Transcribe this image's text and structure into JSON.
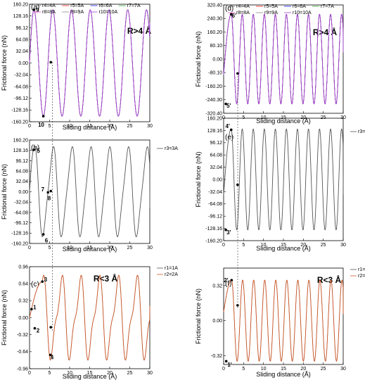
{
  "chart_data": [
    {
      "id": "a",
      "type": "line",
      "panel_label": "(a)",
      "xlabel": "Sliding distance (Å)",
      "ylabel": "Frictional force (nN)",
      "xlim": [
        0,
        30
      ],
      "xticks": [
        "0",
        "5",
        "10",
        "15",
        "20",
        "25",
        "30"
      ],
      "ylim": [
        -160.2,
        160.2
      ],
      "yticks": [
        "160.20",
        "128.16",
        "96.12",
        "64.08",
        "32.04",
        "0.00",
        "-32.04",
        "-64.08",
        "-96.12",
        "-128.16",
        "-160.20"
      ],
      "region_label": "R>4 Å",
      "legend": {
        "ncol": 4,
        "entries": [
          "r4=4A",
          "r5=5A",
          "r6=6A",
          "r7=7A",
          "r8=8A",
          "r9=9A",
          "r10=10A"
        ]
      },
      "colors": [
        "#555555",
        "#ff2020",
        "#2020ff",
        "#3aa53a",
        "#e83cc8",
        "#8a8a8a",
        "#a040d0"
      ],
      "curve": {
        "amplitude": 145,
        "period": 4.68,
        "phase_x": 1.1,
        "start_x": 0.0,
        "end_x": 30.0,
        "start_y": 0.0,
        "end_y": 110.0
      },
      "points": [
        {
          "label": "9",
          "x": 1.1,
          "y": 145
        },
        {
          "label": "10",
          "x": 3.45,
          "y": -145
        },
        {
          "label": "",
          "x": 5.3,
          "y": 2
        }
      ],
      "annotations": [
        {
          "text": "9",
          "x": 2.0,
          "y": 145
        },
        {
          "text": "10",
          "x": 2.9,
          "y": -168
        }
      ]
    },
    {
      "id": "b",
      "type": "line",
      "panel_label": "(b)",
      "xlabel": "Sliding distance (Å)",
      "ylabel": "Frictional force (nN)",
      "xlim": [
        0,
        30
      ],
      "xticks": [
        "0",
        "5",
        "10",
        "15",
        "20",
        "25",
        "30"
      ],
      "ylim": [
        -160.2,
        160.2
      ],
      "yticks": [
        "160.20",
        "128.16",
        "96.12",
        "64.08",
        "32.04",
        "0.00",
        "-32.04",
        "-64.08",
        "-96.12",
        "-128.16",
        "-160.20"
      ],
      "region_label": "",
      "legend": {
        "ncol": 1,
        "entries": [
          "r3=3A"
        ]
      },
      "colors": [
        "#555555"
      ],
      "curve": {
        "amplitude": 132,
        "period": 4.68,
        "phase_x": 1.1,
        "start_x": 0.0,
        "end_x": 30.0,
        "start_y": 0.0,
        "end_y": -50.0,
        "sub_wiggle": 0.18
      },
      "points": [
        {
          "label": "5",
          "x": 1.1,
          "y": 130
        },
        {
          "label": "6",
          "x": 3.45,
          "y": -132
        },
        {
          "label": "7",
          "x": 4.6,
          "y": -2
        },
        {
          "label": "8",
          "x": 5.3,
          "y": 2
        }
      ],
      "annotations": [
        {
          "text": "5",
          "x": 2.2,
          "y": 128
        },
        {
          "text": "6",
          "x": 4.2,
          "y": -150
        },
        {
          "text": "7",
          "x": 3.3,
          "y": 8
        },
        {
          "text": "8",
          "x": 4.9,
          "y": -20
        }
      ]
    },
    {
      "id": "c",
      "type": "line",
      "panel_label": "(c)",
      "xlabel": "Sliding distance (Å)",
      "ylabel": "Frictional force (nN)",
      "xlim": [
        0,
        30
      ],
      "xticks": [
        "0",
        "5",
        "10",
        "15",
        "20",
        "25",
        "30"
      ],
      "ylim": [
        -0.96,
        0.96
      ],
      "yticks": [
        "0.96",
        "0.64",
        "0.32",
        "0.00",
        "-0.32",
        "-0.64",
        "-0.96"
      ],
      "region_label": "R<3 Å",
      "legend": {
        "ncol": 1,
        "entries": [
          "r1=1A",
          "r2=2A"
        ]
      },
      "colors": [
        "#555555",
        "#d05a2a"
      ],
      "curve": {
        "amplitude": 0.68,
        "period": 4.68,
        "phase_x": 3.2,
        "start_x": 0.0,
        "end_x": 30.0,
        "start_y": 0.0,
        "end_y": 0.22,
        "sub_wiggle": 0.35
      },
      "points": [
        {
          "label": "1",
          "x": 0.5,
          "y": 0.16
        },
        {
          "label": "2",
          "x": 1.3,
          "y": -0.2
        },
        {
          "label": "3",
          "x": 3.2,
          "y": 0.68
        },
        {
          "label": "4",
          "x": 5.2,
          "y": -0.7
        },
        {
          "label": "",
          "x": 5.3,
          "y": -0.18
        }
      ],
      "annotations": [
        {
          "text": "1",
          "x": 1.3,
          "y": 0.2
        },
        {
          "text": "2",
          "x": 2.1,
          "y": -0.24
        },
        {
          "text": "3",
          "x": 4.0,
          "y": 0.72
        },
        {
          "text": "4",
          "x": 5.6,
          "y": -0.74
        }
      ]
    },
    {
      "id": "d",
      "type": "line",
      "panel_label": "(d)",
      "xlabel": "Sliding distance (Å)",
      "ylabel": "Frictional force (nN)",
      "xlim": [
        0,
        30
      ],
      "xticks": [
        "0",
        "5",
        "10",
        "15",
        "20",
        "25",
        "30"
      ],
      "ylim": [
        -320.4,
        320.4
      ],
      "yticks": [
        "320.40",
        "240.30",
        "160.20",
        "80.10",
        "0.00",
        "-80.10",
        "-160.20",
        "-240.30",
        "-320.40"
      ],
      "region_label": "R>4 Å",
      "legend": {
        "ncol": 4,
        "entries": [
          "r4=4A",
          "r5=5A",
          "r6=6A",
          "r7=7A",
          "r8=8A",
          "r9=9A",
          "r10=10A"
        ]
      },
      "colors": [
        "#555555",
        "#ff2020",
        "#2020ff",
        "#3aa53a",
        "#e83cc8",
        "#8a8a8a",
        "#a040d0"
      ],
      "curve": {
        "amplitude": 265,
        "period": 2.77,
        "phase_x": 1.9,
        "start_x": 0.0,
        "end_x": 30.0,
        "start_y": -90.0,
        "end_y": 40.0
      },
      "points": [
        {
          "label": "5'",
          "x": 0.55,
          "y": -265
        },
        {
          "label": "6'",
          "x": 1.9,
          "y": 265
        },
        {
          "label": "",
          "x": 3.5,
          "y": -85
        }
      ],
      "annotations": [
        {
          "text": "5'",
          "x": 1.3,
          "y": -275
        },
        {
          "text": "6'",
          "x": 2.6,
          "y": 258
        }
      ]
    },
    {
      "id": "e",
      "type": "line",
      "panel_label": "(e)",
      "xlabel": "Sliding distance (Å)",
      "ylabel": "Frictional force (nN)",
      "xlim": [
        0,
        30
      ],
      "xticks": [
        "0",
        "5",
        "10",
        "15",
        "20",
        "25",
        "30"
      ],
      "ylim": [
        -160.2,
        160.2
      ],
      "yticks": [
        "160.20",
        "128.16",
        "96.12",
        "64.08",
        "32.04",
        "0.00",
        "-32.04",
        "-64.08",
        "-96.12",
        "-128.16",
        "-160.20"
      ],
      "region_label": "",
      "legend": {
        "ncol": 1,
        "entries": [
          "r3=3A"
        ]
      },
      "colors": [
        "#555555"
      ],
      "curve": {
        "amplitude": 132,
        "period": 2.77,
        "phase_x": 1.9,
        "start_x": 0.0,
        "end_x": 30.0,
        "start_y": -40.0,
        "end_y": -40.0
      },
      "points": [
        {
          "label": "3'",
          "x": 0.55,
          "y": -132
        },
        {
          "label": "4'",
          "x": 1.9,
          "y": 130
        },
        {
          "label": "",
          "x": 3.5,
          "y": -14
        }
      ],
      "annotations": [
        {
          "text": "3'",
          "x": 1.3,
          "y": -138
        },
        {
          "text": "4'",
          "x": 1.0,
          "y": 140
        }
      ]
    },
    {
      "id": "f",
      "type": "line",
      "panel_label": "(f)",
      "xlabel": "Sliding distance (Å)",
      "ylabel": "Frictional force (nN)",
      "xlim": [
        0,
        30
      ],
      "xticks": [
        "0",
        "5",
        "10",
        "15",
        "20",
        "25",
        "30"
      ],
      "ylim": [
        -0.4,
        0.48
      ],
      "yticks": [
        "0.32",
        "0.00",
        "-0.32"
      ],
      "region_label": "R<3 Å",
      "legend": {
        "ncol": 1,
        "entries": [
          "r1=1A",
          "r2=2A"
        ]
      },
      "colors": [
        "#555555",
        "#d05a2a"
      ],
      "curve": {
        "amplitude": 0.37,
        "period": 2.77,
        "phase_x": 2.0,
        "start_x": 0.0,
        "end_x": 30.0,
        "start_y": 0.08,
        "end_y": 0.06
      },
      "points": [
        {
          "label": "1'",
          "x": 0.65,
          "y": -0.37
        },
        {
          "label": "2'",
          "x": 2.0,
          "y": 0.37
        },
        {
          "label": "",
          "x": 3.5,
          "y": 0.14
        }
      ],
      "annotations": [
        {
          "text": "1'",
          "x": 1.5,
          "y": -0.4
        },
        {
          "text": "2'",
          "x": 0.6,
          "y": 0.37
        }
      ]
    }
  ]
}
